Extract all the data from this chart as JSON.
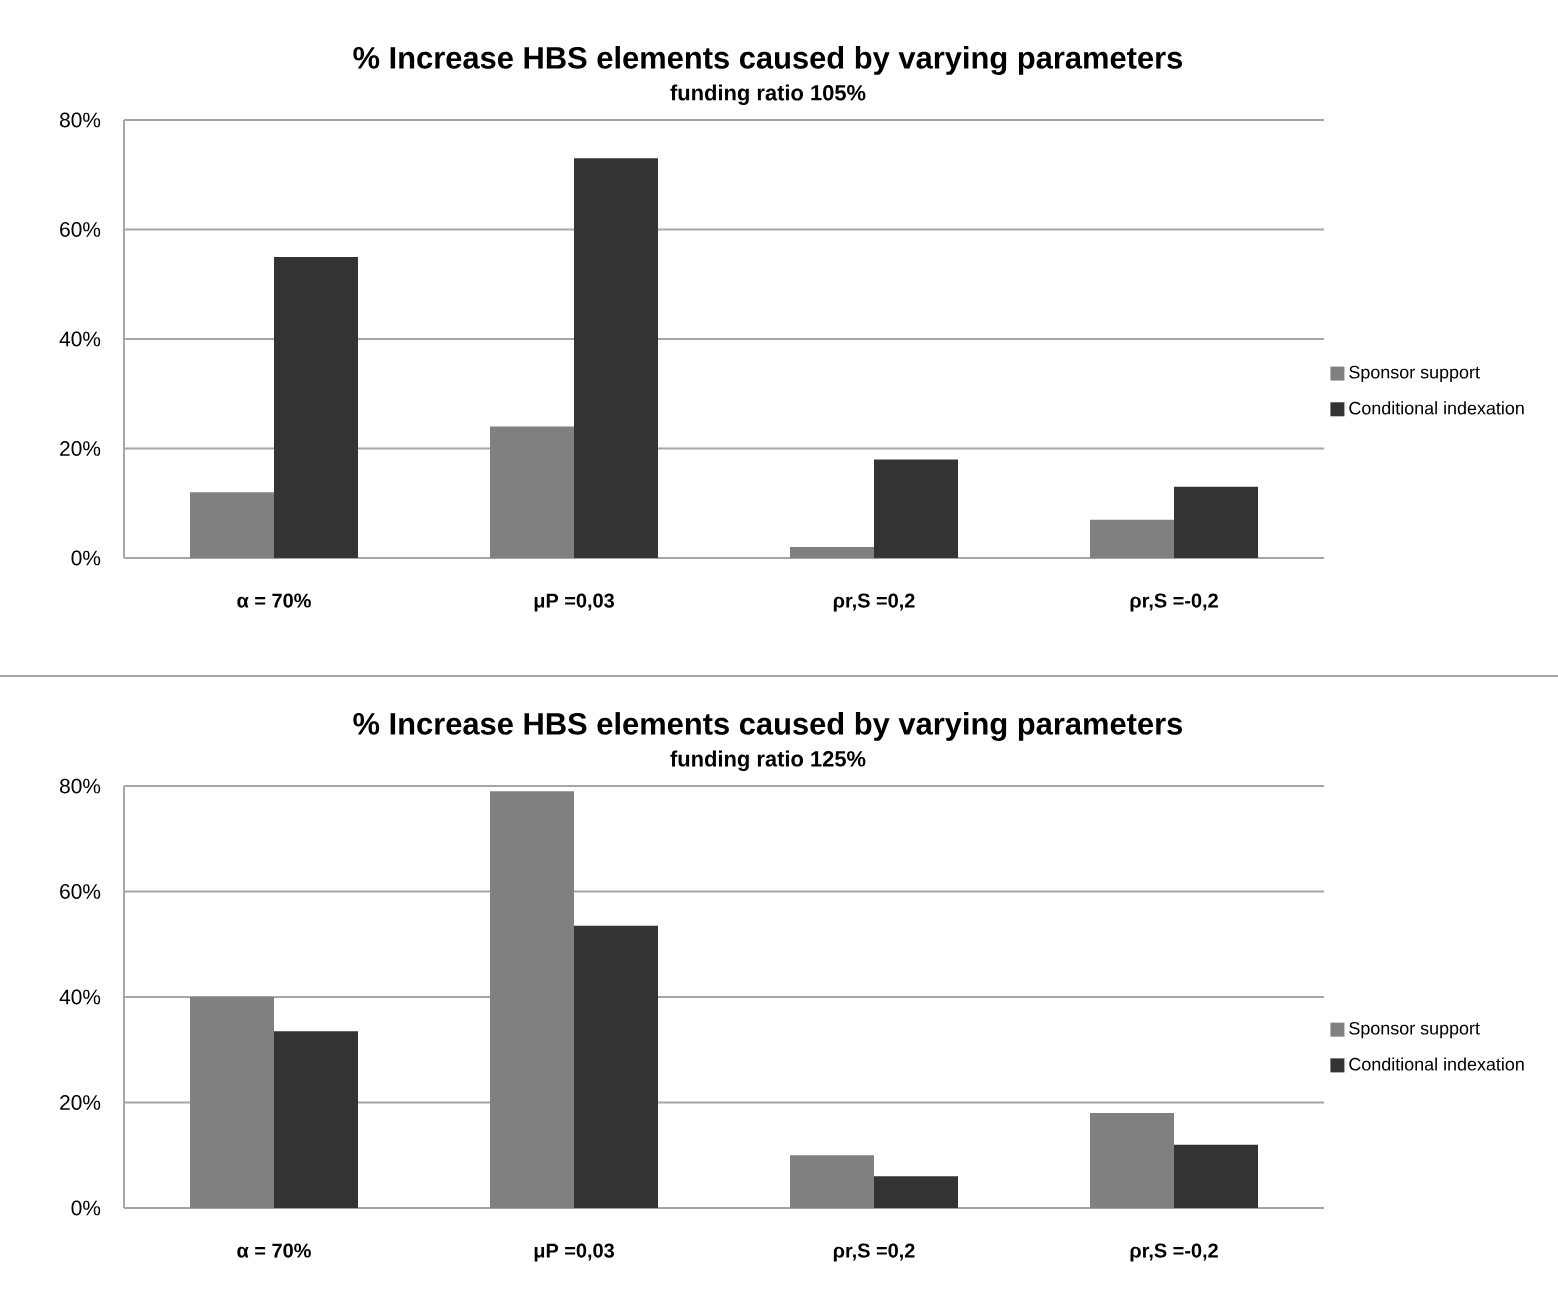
{
  "chart_data": [
    {
      "type": "bar",
      "title": "% Increase HBS elements caused by varying parameters",
      "subtitle": "funding ratio 105%",
      "categories": [
        "α = 70%",
        "μP =0,03",
        "ρr,S =0,2",
        "ρr,S =-0,2"
      ],
      "series": [
        {
          "name": "Sponsor support",
          "color": "#808080",
          "values": [
            12,
            24,
            2,
            7
          ]
        },
        {
          "name": "Conditional indexation",
          "color": "#333333",
          "values": [
            55,
            73,
            18,
            13
          ]
        }
      ],
      "ylim": [
        0,
        80
      ],
      "yticks": [
        {
          "value": 0,
          "label": "0%"
        },
        {
          "value": 20,
          "label": "20%"
        },
        {
          "value": 40,
          "label": "40%"
        },
        {
          "value": 60,
          "label": "60%"
        },
        {
          "value": 80,
          "label": "80%"
        }
      ],
      "grid": "y",
      "legend": "right"
    },
    {
      "type": "bar",
      "title": "% Increase HBS elements caused by varying parameters",
      "subtitle": "funding ratio 125%",
      "categories": [
        "α = 70%",
        "μP =0,03",
        "ρr,S =0,2",
        "ρr,S =-0,2"
      ],
      "series": [
        {
          "name": "Sponsor support",
          "color": "#808080",
          "values": [
            40,
            79,
            10,
            18
          ]
        },
        {
          "name": "Conditional indexation",
          "color": "#333333",
          "values": [
            33.5,
            53.5,
            6,
            12
          ]
        }
      ],
      "ylim": [
        0,
        80
      ],
      "yticks": [
        {
          "value": 0,
          "label": "0%"
        },
        {
          "value": 20,
          "label": "20%"
        },
        {
          "value": 40,
          "label": "40%"
        },
        {
          "value": 60,
          "label": "60%"
        },
        {
          "value": 80,
          "label": "80%"
        }
      ],
      "grid": "y",
      "legend": "right"
    }
  ]
}
